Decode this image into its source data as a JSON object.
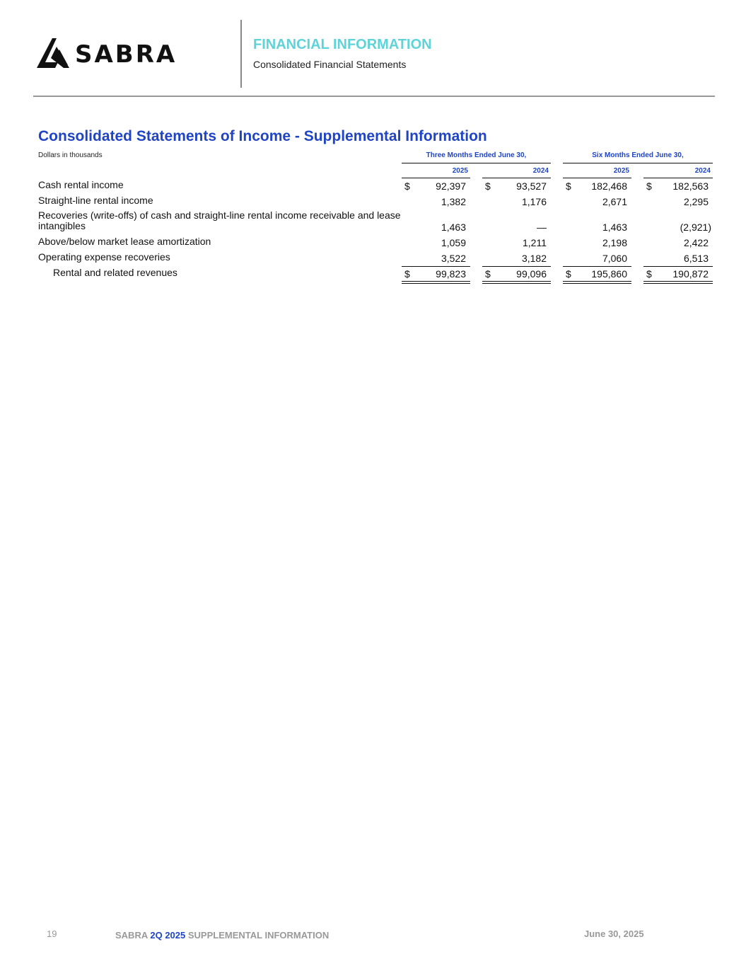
{
  "header": {
    "logo_text": "SABRA",
    "section": "FINANCIAL INFORMATION",
    "subtitle": "Consolidated Financial Statements"
  },
  "table": {
    "title": "Consolidated Statements of Income - Supplemental Information",
    "units": "Dollars in thousands",
    "groups": [
      "Three Months Ended June 30,",
      "Six Months Ended June 30,"
    ],
    "years": [
      "2025",
      "2024",
      "2025",
      "2024"
    ],
    "rows": [
      {
        "label": "Cash rental income",
        "values": [
          "92,397",
          "93,527",
          "182,468",
          "182,563"
        ],
        "dollar": true
      },
      {
        "label": "Straight-line rental income",
        "values": [
          "1,382",
          "1,176",
          "2,671",
          "2,295"
        ],
        "dollar": false
      },
      {
        "label": "Recoveries (write-offs) of cash and straight-line rental income receivable and lease intangibles",
        "values": [
          "1,463",
          "—",
          "1,463",
          "(2,921)"
        ],
        "dollar": false
      },
      {
        "label": "Above/below market lease amortization",
        "values": [
          "1,059",
          "1,211",
          "2,198",
          "2,422"
        ],
        "dollar": false
      },
      {
        "label": "Operating expense recoveries",
        "values": [
          "3,522",
          "3,182",
          "7,060",
          "6,513"
        ],
        "dollar": false
      },
      {
        "label": "Rental and related revenues",
        "values": [
          "99,823",
          "99,096",
          "195,860",
          "190,872"
        ],
        "dollar": true
      }
    ],
    "currency_symbol": "$"
  },
  "footer": {
    "page_number": "19",
    "brand": "SABRA",
    "period": "2Q 2025",
    "doc": "SUPPLEMENTAL INFORMATION",
    "date": "June 30, 2025"
  },
  "colors": {
    "accent_blue": "#1f44c4",
    "accent_teal": "#5fd3d8"
  }
}
